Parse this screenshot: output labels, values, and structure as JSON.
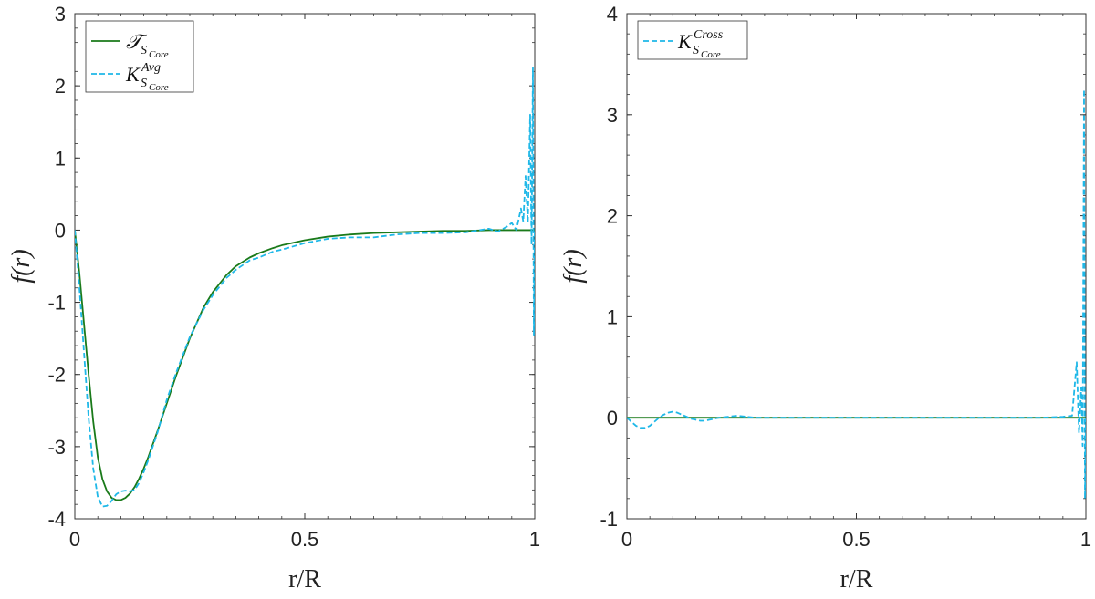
{
  "chart_data": [
    {
      "type": "line",
      "xlabel": "r/R",
      "ylabel": "f(r)",
      "xlim": [
        0,
        1
      ],
      "ylim": [
        -4,
        3
      ],
      "xticks": [
        0,
        0.5,
        1
      ],
      "xtick_labels": [
        "0",
        "0.5",
        "1"
      ],
      "yticks": [
        -4,
        -3,
        -2,
        -1,
        0,
        1,
        2,
        3
      ],
      "ytick_labels": [
        "-4",
        "-3",
        "-2",
        "-1",
        "0",
        "1",
        "2",
        "3"
      ],
      "legend_position": "top-left",
      "series": [
        {
          "name": "T_SCore",
          "legend_main": "𝒯",
          "legend_sub": "S",
          "legend_sub2": "Core",
          "color": "#1a7a1a",
          "style": "solid",
          "x": [
            0,
            0.01,
            0.02,
            0.03,
            0.04,
            0.05,
            0.06,
            0.07,
            0.08,
            0.09,
            0.1,
            0.11,
            0.12,
            0.13,
            0.14,
            0.15,
            0.16,
            0.18,
            0.2,
            0.22,
            0.25,
            0.28,
            0.3,
            0.33,
            0.35,
            0.38,
            0.4,
            0.43,
            0.45,
            0.5,
            0.55,
            0.6,
            0.65,
            0.7,
            0.75,
            0.8,
            0.85,
            0.9,
            0.95,
            1.0
          ],
          "y": [
            0,
            -0.6,
            -1.3,
            -2.0,
            -2.65,
            -3.15,
            -3.45,
            -3.62,
            -3.71,
            -3.74,
            -3.74,
            -3.71,
            -3.65,
            -3.56,
            -3.44,
            -3.3,
            -3.14,
            -2.78,
            -2.4,
            -2.02,
            -1.5,
            -1.07,
            -0.86,
            -0.62,
            -0.5,
            -0.38,
            -0.32,
            -0.25,
            -0.21,
            -0.14,
            -0.09,
            -0.06,
            -0.04,
            -0.03,
            -0.02,
            -0.01,
            -0.01,
            0,
            0,
            0
          ]
        },
        {
          "name": "K_SCore^Avg",
          "legend_main": "K",
          "legend_sup": "Avg",
          "legend_sub": "S",
          "legend_sub2": "Core",
          "color": "#1fb8e8",
          "style": "dashed",
          "x": [
            0,
            0.01,
            0.02,
            0.03,
            0.04,
            0.05,
            0.06,
            0.07,
            0.08,
            0.09,
            0.1,
            0.11,
            0.12,
            0.13,
            0.14,
            0.15,
            0.16,
            0.18,
            0.2,
            0.22,
            0.25,
            0.28,
            0.3,
            0.33,
            0.35,
            0.38,
            0.4,
            0.43,
            0.45,
            0.5,
            0.55,
            0.6,
            0.65,
            0.7,
            0.75,
            0.8,
            0.85,
            0.9,
            0.92,
            0.94,
            0.95,
            0.96,
            0.97,
            0.975,
            0.98,
            0.985,
            0.99,
            0.993,
            0.996,
            0.998,
            1.0
          ],
          "y": [
            0,
            -0.8,
            -1.7,
            -2.6,
            -3.3,
            -3.7,
            -3.83,
            -3.82,
            -3.75,
            -3.66,
            -3.62,
            -3.61,
            -3.62,
            -3.6,
            -3.5,
            -3.35,
            -3.18,
            -2.8,
            -2.35,
            -1.98,
            -1.48,
            -1.1,
            -0.9,
            -0.66,
            -0.55,
            -0.42,
            -0.38,
            -0.3,
            -0.27,
            -0.18,
            -0.12,
            -0.1,
            -0.1,
            -0.06,
            -0.04,
            -0.04,
            -0.03,
            0.02,
            -0.02,
            0.05,
            0.1,
            0.0,
            0.3,
            0.12,
            0.75,
            0.1,
            1.6,
            -0.2,
            2.25,
            -1.45,
            0.0
          ]
        }
      ]
    },
    {
      "type": "line",
      "xlabel": "r/R",
      "ylabel": "f(r)",
      "xlim": [
        0,
        1
      ],
      "ylim": [
        -1,
        4
      ],
      "xticks": [
        0,
        0.5,
        1
      ],
      "xtick_labels": [
        "0",
        "0.5",
        "1"
      ],
      "yticks": [
        -1,
        0,
        1,
        2,
        3,
        4
      ],
      "ytick_labels": [
        "-1",
        "0",
        "1",
        "2",
        "3",
        "4"
      ],
      "legend_position": "top-left",
      "series": [
        {
          "name": "zero",
          "color": "#1a7a1a",
          "style": "solid",
          "show_in_legend": false,
          "x": [
            0,
            1
          ],
          "y": [
            0,
            0
          ]
        },
        {
          "name": "K_SCore^Cross",
          "legend_main": "K",
          "legend_sup": "Cross",
          "legend_sub": "S",
          "legend_sub2": "Core",
          "color": "#1fb8e8",
          "style": "dashed",
          "x": [
            0,
            0.01,
            0.02,
            0.03,
            0.04,
            0.05,
            0.06,
            0.07,
            0.08,
            0.09,
            0.1,
            0.11,
            0.12,
            0.13,
            0.14,
            0.15,
            0.16,
            0.17,
            0.18,
            0.19,
            0.2,
            0.22,
            0.24,
            0.26,
            0.28,
            0.3,
            0.35,
            0.4,
            0.5,
            0.6,
            0.7,
            0.8,
            0.9,
            0.95,
            0.97,
            0.98,
            0.985,
            0.99,
            0.993,
            0.996,
            0.998,
            1.0
          ],
          "y": [
            0,
            -0.04,
            -0.08,
            -0.1,
            -0.1,
            -0.08,
            -0.04,
            0.0,
            0.03,
            0.05,
            0.06,
            0.05,
            0.03,
            0.01,
            -0.01,
            -0.02,
            -0.03,
            -0.03,
            -0.02,
            -0.01,
            0.0,
            0.01,
            0.02,
            0.01,
            0.0,
            0.0,
            0.0,
            0.0,
            0.0,
            0.0,
            0.0,
            0.0,
            0.0,
            0.01,
            0.02,
            0.55,
            -0.15,
            0.3,
            -0.28,
            3.25,
            -0.8,
            0.0
          ]
        }
      ]
    }
  ]
}
